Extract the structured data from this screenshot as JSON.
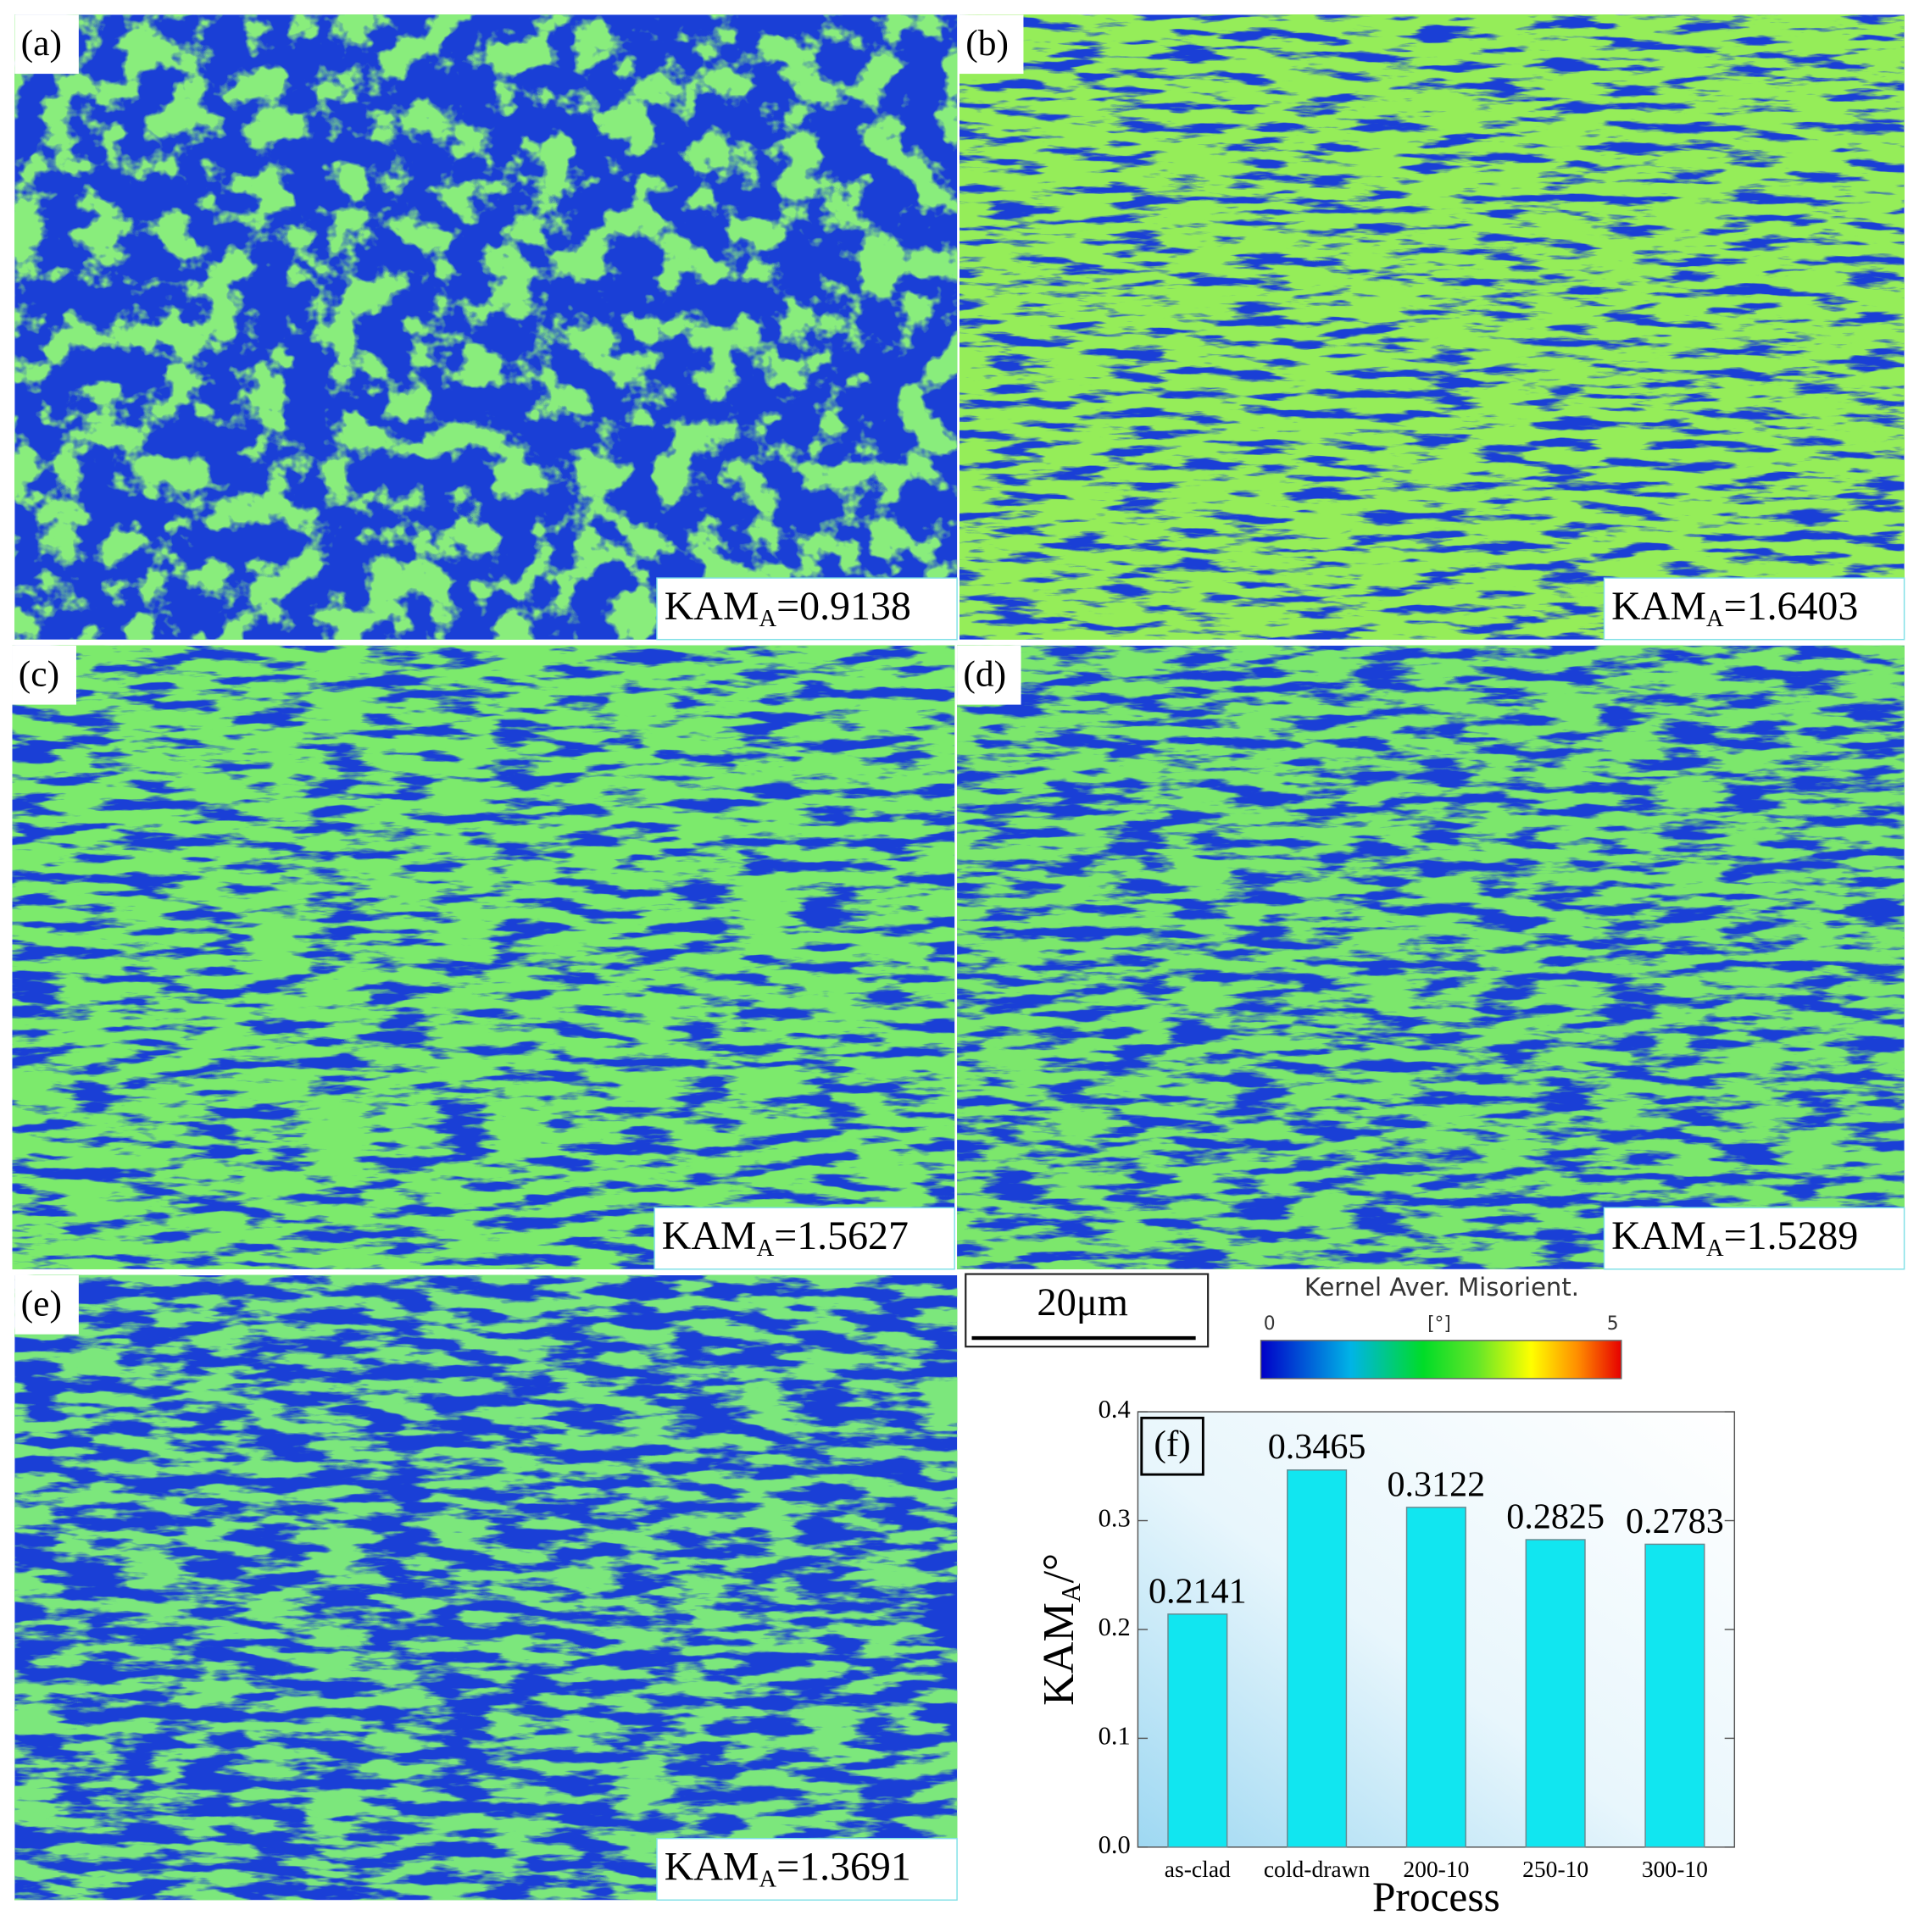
{
  "panels": [
    {
      "label": "(a)",
      "kam": {
        "main": "KAM",
        "sub": "A",
        "suffix": "=0.9138"
      }
    },
    {
      "label": "(b)",
      "kam": {
        "main": "KAM",
        "sub": "A",
        "suffix": "=1.6403"
      }
    },
    {
      "label": "(c)",
      "kam": {
        "main": "KAM",
        "sub": "A",
        "suffix": "=1.5627"
      }
    },
    {
      "label": "(d)",
      "kam": {
        "main": "KAM",
        "sub": "A",
        "suffix": "=1.5289"
      }
    },
    {
      "label": "(e)",
      "kam": {
        "main": "KAM",
        "sub": "A",
        "suffix": "=1.3691"
      }
    }
  ],
  "scale_bar": "20μm",
  "colorbar": {
    "title": "Kernel Aver. Misorient.",
    "min": "0",
    "unit": "[°]",
    "max": "5"
  },
  "chart_data": {
    "type": "bar",
    "panel_label": "(f)",
    "xlabel": "Process",
    "ylabel": {
      "main": "KAM",
      "sub": "A",
      "suffix": "/°"
    },
    "categories": [
      "as-clad",
      "cold-drawn",
      "200-10",
      "250-10",
      "300-10"
    ],
    "values": [
      0.2141,
      0.3465,
      0.3122,
      0.2825,
      0.2783
    ],
    "color": "#11e6f0",
    "ylim": [
      0,
      0.4
    ],
    "yticks": [
      {
        "value": 0,
        "label": "0.0"
      },
      0.1,
      0.2,
      0.3,
      0.4
    ]
  }
}
